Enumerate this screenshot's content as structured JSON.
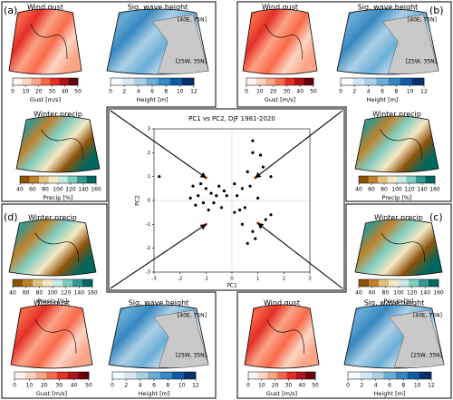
{
  "chart_data": {
    "type": "scatter",
    "title": "PC1 vs PC2, DJF 1981-2020",
    "x_label": "PC1",
    "y_label": "PC2",
    "xlim": [
      -3,
      3
    ],
    "ylim": [
      -3,
      3
    ],
    "xticks": [
      -3,
      -2,
      -1,
      0,
      1,
      2,
      3
    ],
    "yticks": [
      -3,
      -2,
      -1,
      0,
      1,
      2,
      3
    ],
    "zero_lines": true,
    "series": [
      {
        "color": "#000000",
        "x": [
          -2.8,
          -1.5,
          -1.2,
          -1.0,
          -0.5,
          -0.8,
          -1.3,
          -0.6,
          -1.6,
          -0.2,
          -0.7,
          -1.1,
          -0.4,
          -0.9,
          -0.3,
          -1.4,
          0.1,
          0.2,
          0.4,
          0.1,
          0.3,
          0.5,
          0.7,
          1.0,
          1.5,
          1.2,
          0.6,
          0.8,
          1.1,
          0.8,
          0.9,
          0.8,
          1.1,
          1.3,
          0.6,
          0.4,
          1.5
        ],
        "y": [
          1.0,
          0.6,
          0.7,
          0.5,
          0.6,
          0.3,
          0.2,
          0.2,
          0.1,
          0.2,
          -0.1,
          -0.1,
          -0.3,
          -0.4,
          0.4,
          -0.2,
          0.7,
          0.2,
          0.5,
          -0.5,
          -0.4,
          -0.3,
          0.6,
          0.1,
          1.0,
          1.4,
          1.2,
          2.0,
          1.9,
          2.5,
          -1.6,
          -1.3,
          -1.1,
          -0.8,
          -1.8,
          -1.0,
          -0.6
        ]
      },
      {
        "color": "#d9531e",
        "x": [
          -1.0,
          0.9,
          -1.0,
          1.0
        ],
        "y": [
          0.95,
          0.95,
          -1.0,
          -0.95
        ]
      }
    ]
  },
  "panels": [
    {
      "label": "(a)",
      "maps": [
        {
          "title": "Wind gust",
          "colorbar_label": "Gust [m/s]",
          "ticks": [
            0,
            10,
            20,
            30,
            40,
            50
          ],
          "cmap": [
            "#fff5f0",
            "#fdd5c4",
            "#fca486",
            "#f96a4b",
            "#e32f27",
            "#b11218",
            "#67000d"
          ]
        },
        {
          "title": "Sig. wave height",
          "colorbar_label": "Height [m]",
          "ticks": [
            0,
            2,
            4,
            6,
            8,
            10,
            12
          ],
          "cmap": [
            "#f7fbff",
            "#d6e6f4",
            "#abd0e6",
            "#6aaed6",
            "#3787c0",
            "#105ba4",
            "#08306b"
          ],
          "corner_labels": [
            "[40E, 75N]",
            "[25W, 35N]"
          ]
        },
        {
          "title": "Winter precip",
          "colorbar_label": "Precip [%]",
          "ticks": [
            40,
            60,
            80,
            100,
            120,
            140,
            160
          ],
          "cmap": [
            "#8c510a",
            "#bf812d",
            "#dfc27d",
            "#f6e8c3",
            "#c7eae5",
            "#80cdc1",
            "#35978f",
            "#01665e"
          ]
        }
      ]
    },
    {
      "label": "(b)",
      "maps": [
        {
          "title": "Wind gust",
          "colorbar_label": "Gust [m/s]",
          "ticks": [
            0,
            10,
            20,
            30,
            40,
            50
          ],
          "cmap": [
            "#fff5f0",
            "#fdd5c4",
            "#fca486",
            "#f96a4b",
            "#e32f27",
            "#b11218",
            "#67000d"
          ]
        },
        {
          "title": "Sig. wave height",
          "colorbar_label": "Height [m]",
          "ticks": [
            0,
            2,
            4,
            6,
            8,
            10,
            12
          ],
          "cmap": [
            "#f7fbff",
            "#d6e6f4",
            "#abd0e6",
            "#6aaed6",
            "#3787c0",
            "#105ba4",
            "#08306b"
          ],
          "corner_labels": [
            "[40E, 75N]",
            "[25W, 35N]"
          ]
        },
        {
          "title": "Winter precip",
          "colorbar_label": "Precip [%]",
          "ticks": [
            40,
            60,
            80,
            100,
            120,
            140,
            160
          ],
          "cmap": [
            "#8c510a",
            "#bf812d",
            "#dfc27d",
            "#f6e8c3",
            "#c7eae5",
            "#80cdc1",
            "#35978f",
            "#01665e"
          ]
        }
      ]
    },
    {
      "label": "(c)",
      "maps": [
        {
          "title": "Winter precip",
          "colorbar_label": "Precip [%]",
          "ticks": [
            40,
            60,
            80,
            100,
            120,
            140,
            160
          ],
          "cmap": [
            "#8c510a",
            "#bf812d",
            "#dfc27d",
            "#f6e8c3",
            "#c7eae5",
            "#80cdc1",
            "#35978f",
            "#01665e"
          ]
        },
        {
          "title": "Wind gust",
          "colorbar_label": "Gust [m/s]",
          "ticks": [
            0,
            10,
            20,
            30,
            40,
            50
          ],
          "cmap": [
            "#fff5f0",
            "#fdd5c4",
            "#fca486",
            "#f96a4b",
            "#e32f27",
            "#b11218",
            "#67000d"
          ]
        },
        {
          "title": "Sig. wave height",
          "colorbar_label": "Height [m]",
          "ticks": [
            0,
            2,
            4,
            6,
            8,
            10,
            12
          ],
          "cmap": [
            "#f7fbff",
            "#d6e6f4",
            "#abd0e6",
            "#6aaed6",
            "#3787c0",
            "#105ba4",
            "#08306b"
          ],
          "corner_labels": [
            "[40E, 75N]",
            "[25W, 35N]"
          ]
        }
      ]
    },
    {
      "label": "(d)",
      "maps": [
        {
          "title": "Winter precip",
          "colorbar_label": "Precip [%]",
          "ticks": [
            40,
            60,
            80,
            100,
            120,
            140,
            160
          ],
          "cmap": [
            "#8c510a",
            "#bf812d",
            "#dfc27d",
            "#f6e8c3",
            "#c7eae5",
            "#80cdc1",
            "#35978f",
            "#01665e"
          ]
        },
        {
          "title": "Wind gust",
          "colorbar_label": "Gust [m/s]",
          "ticks": [
            0,
            10,
            20,
            30,
            40,
            50
          ],
          "cmap": [
            "#fff5f0",
            "#fdd5c4",
            "#fca486",
            "#f96a4b",
            "#e32f27",
            "#b11218",
            "#67000d"
          ]
        },
        {
          "title": "Sig. wave height",
          "colorbar_label": "Height [m]",
          "ticks": [
            0,
            2,
            4,
            6,
            8,
            10,
            12
          ],
          "cmap": [
            "#f7fbff",
            "#d6e6f4",
            "#abd0e6",
            "#6aaed6",
            "#3787c0",
            "#105ba4",
            "#08306b"
          ],
          "corner_labels": [
            "[40E, 75N]",
            "[25W, 35N]"
          ]
        }
      ]
    }
  ]
}
